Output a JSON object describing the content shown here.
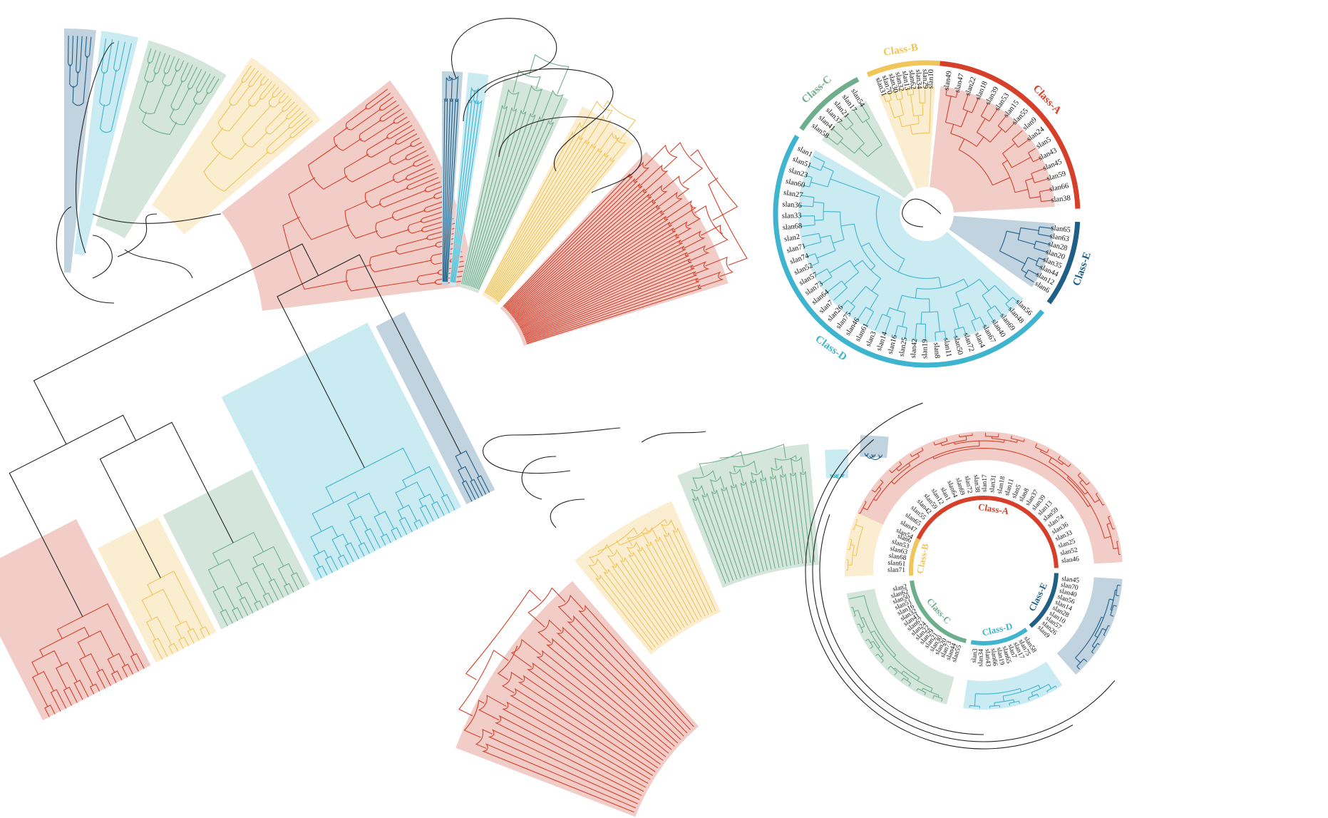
{
  "colors": {
    "A": {
      "fill": "#f2cdc8",
      "line": "#d6402b"
    },
    "B": {
      "fill": "#fbedcf",
      "line": "#f0c55a"
    },
    "C": {
      "fill": "#d4e6dc",
      "line": "#6fae8d"
    },
    "D": {
      "fill": "#cbebf3",
      "line": "#3fb4cf"
    },
    "E": {
      "fill": "#c1d3df",
      "line": "#1f5f87"
    },
    "root": "#222222"
  },
  "panel_c": {
    "classes": [
      {
        "key": "A",
        "label": "Class-A",
        "leaves": [
          "slan49",
          "slan47",
          "slan22",
          "slan18",
          "slan39",
          "slan53",
          "slan15",
          "slan55",
          "slan9",
          "slan24",
          "slan5",
          "slan43",
          "slan45",
          "slan59",
          "slan66",
          "slan38"
        ]
      },
      {
        "key": "E",
        "label": "Class-E",
        "leaves": [
          "slan65",
          "slan63",
          "slan28",
          "slan20",
          "slan35",
          "slan44",
          "slan12",
          "slan6"
        ]
      },
      {
        "key": "D",
        "label": "Class-D",
        "leaves": [
          "slan56",
          "slan48",
          "slan69",
          "slan40",
          "slan67",
          "slan4",
          "slan72",
          "slan50",
          "slan11",
          "slan8",
          "slan19",
          "slan42",
          "slan25",
          "slan16",
          "slan14",
          "slan3",
          "slan61",
          "slan46",
          "slan75",
          "slan26",
          "slan7",
          "slan64",
          "slan73",
          "slan57",
          "slan52",
          "slan74",
          "slan71",
          "slan2",
          "slan68",
          "slan33",
          "slan36",
          "slan27",
          "slan60",
          "slan23",
          "slan51",
          "slan1"
        ]
      },
      {
        "key": "C",
        "label": "Class-C",
        "leaves": [
          "slan58",
          "slan41",
          "slan37",
          "slan21",
          "slan17",
          "slan54"
        ]
      },
      {
        "key": "B",
        "label": "Class-B",
        "leaves": [
          "slan31",
          "slan70",
          "slan30",
          "slan32",
          "slan13",
          "slan62",
          "slan34",
          "slan29",
          "slan10"
        ]
      }
    ]
  },
  "panel_f": {
    "classes": [
      {
        "key": "A",
        "label": "Class-A",
        "leaves": [
          "slan54",
          "slan47",
          "slan65",
          "slan55",
          "slan42",
          "slan59",
          "slan12",
          "slan1",
          "slan64",
          "slan69",
          "slan72",
          "slan38",
          "slan17",
          "slan31",
          "slan18",
          "slan11",
          "slan5",
          "slan8",
          "slan37",
          "slan39",
          "slan13",
          "slan59",
          "slan74",
          "slan36",
          "slan33",
          "slan25",
          "slan52",
          "slan46"
        ]
      },
      {
        "key": "E",
        "label": "Class-E",
        "leaves": [
          "slan45",
          "slan70",
          "slan40",
          "slan56",
          "slan14",
          "slan28",
          "slan10",
          "slan57",
          "slan26",
          "slan9"
        ]
      },
      {
        "key": "D",
        "label": "Class-D",
        "leaves": [
          "slan58",
          "slan75",
          "slan17",
          "slan7",
          "slan65",
          "slan19",
          "slan66",
          "slan43",
          "slan34",
          "slan3"
        ]
      },
      {
        "key": "C",
        "label": "Class-C",
        "leaves": [
          "slan55",
          "slan44",
          "slan73",
          "slan20",
          "slan30",
          "slan21",
          "slan29",
          "slan22",
          "slan24",
          "slan67",
          "slan41",
          "slan32",
          "slan16",
          "slan51",
          "slan50",
          "slan62",
          "slan2"
        ]
      },
      {
        "key": "B",
        "label": "Class-B",
        "leaves": [
          "slan71",
          "slan61",
          "slan68",
          "slan63",
          "slan53",
          "slan6"
        ]
      }
    ]
  },
  "panel_a": {
    "counts": {
      "E": 6,
      "D": 5,
      "C": 16,
      "B": 20,
      "A": 44
    }
  },
  "panel_b": {
    "counts": {
      "E": 6,
      "D": 5,
      "C": 12,
      "B": 14,
      "A": 40
    }
  },
  "panel_d": {
    "counts": {
      "A": 18,
      "B": 10,
      "C": 16,
      "D": 26,
      "E": 6
    }
  },
  "panel_e": {
    "counts": {
      "A": 24,
      "B": 20,
      "C": 24,
      "D": 6,
      "E": 6
    }
  }
}
